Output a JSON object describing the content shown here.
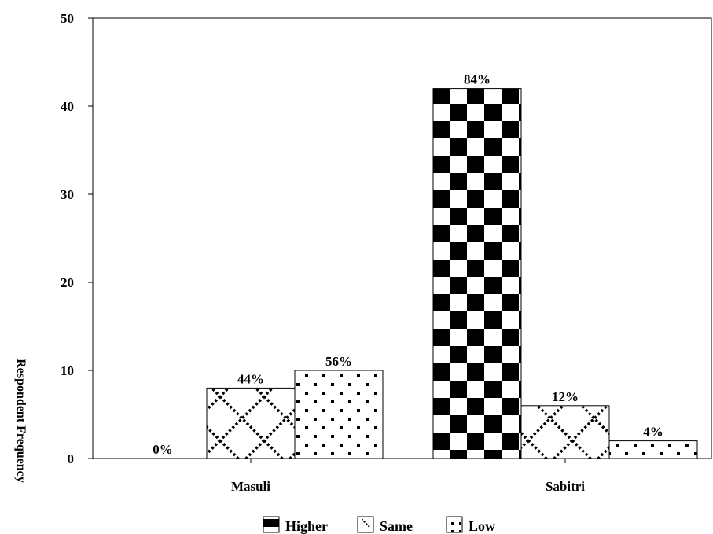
{
  "chart_data": {
    "type": "bar",
    "categories": [
      "Masuli",
      "Sabitri"
    ],
    "series": [
      {
        "name": "Higher",
        "values": [
          0,
          42
        ],
        "labels": [
          "0%",
          "84%"
        ],
        "pattern": "checker"
      },
      {
        "name": "Same",
        "values": [
          8,
          6
        ],
        "labels": [
          "44%",
          "12%"
        ],
        "pattern": "diamond"
      },
      {
        "name": "Low",
        "values": [
          10,
          2
        ],
        "labels": [
          "56%",
          "4%"
        ],
        "pattern": "dots"
      }
    ],
    "ylabel": "Respondent Frequency",
    "ylim": [
      0,
      50
    ],
    "yticks": [
      "0",
      "10",
      "20",
      "30",
      "40",
      "50"
    ],
    "grid": false,
    "legend_position": "bottom",
    "colors": {
      "ink": "#000000",
      "paper": "#ffffff"
    }
  }
}
